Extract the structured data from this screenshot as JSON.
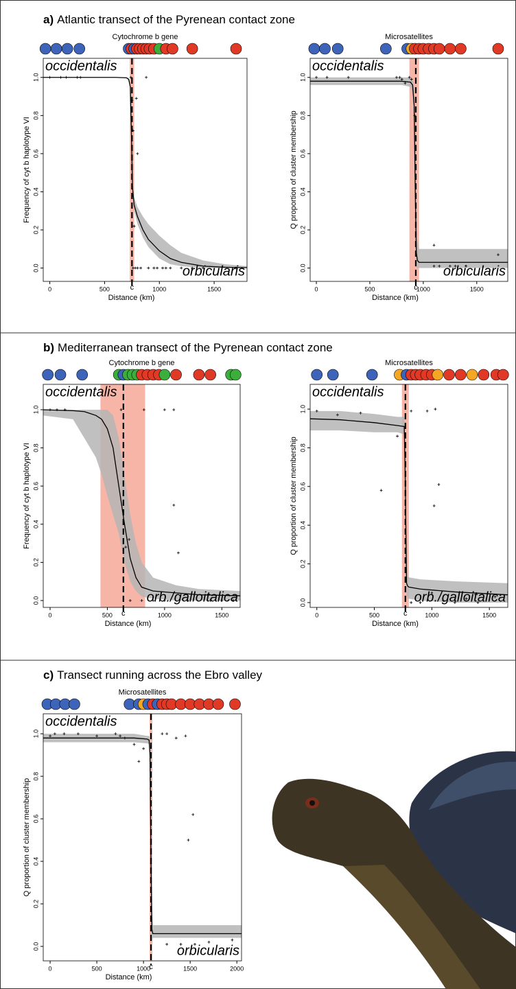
{
  "panels": [
    {
      "label": "a)",
      "title": "Atlantic transect of the Pyrenean contact zone"
    },
    {
      "label": "b)",
      "title": "Mediterranean transect of the Pyrenean contact zone"
    },
    {
      "label": "c)",
      "title": "Transect running across the Ebro valley"
    }
  ],
  "chart_data": [
    {
      "type": "cline",
      "title": "Cytochrome b gene",
      "xlabel": "Distance (km)",
      "ylabel": "Frequency of cyt b haplotype VI",
      "upper_label": "occidentalis",
      "lower_label": "orbicularis",
      "center_label": "c",
      "center": 750,
      "center_ci": [
        730,
        770
      ],
      "xlim": [
        -60,
        1800
      ],
      "ylim": [
        -0.07,
        1.1
      ],
      "xticks": [
        0,
        500,
        1000,
        1500
      ],
      "yticks": [
        {
          "value": 0,
          "label": "0.0"
        },
        0.2,
        0.4,
        0.6,
        0.8,
        {
          "value": 1,
          "label": "1.0"
        }
      ],
      "curve": {
        "x": [
          -60,
          600,
          700,
          720,
          735,
          745,
          755,
          770,
          800,
          850,
          900,
          1000,
          1100,
          1200,
          1400,
          1600,
          1800
        ],
        "y": [
          1,
          1,
          0.998,
          0.99,
          0.95,
          0.7,
          0.42,
          0.33,
          0.27,
          0.2,
          0.15,
          0.09,
          0.05,
          0.03,
          0.01,
          0.004,
          0.002
        ]
      },
      "band": {
        "x": [
          -60,
          600,
          700,
          720,
          735,
          745,
          755,
          770,
          800,
          850,
          900,
          1000,
          1100,
          1200,
          1400,
          1600,
          1800
        ],
        "upper": [
          1,
          1,
          1,
          0.995,
          0.97,
          0.75,
          0.45,
          0.37,
          0.32,
          0.27,
          0.23,
          0.17,
          0.12,
          0.08,
          0.04,
          0.02,
          0.01
        ],
        "lower": [
          1,
          1,
          0.996,
          0.985,
          0.93,
          0.65,
          0.39,
          0.3,
          0.23,
          0.16,
          0.11,
          0.05,
          0.02,
          0.01,
          0,
          0,
          0
        ]
      },
      "points": {
        "x": [
          0,
          100,
          150,
          250,
          280,
          740,
          750,
          760,
          790,
          800,
          880,
          770,
          760,
          780,
          800,
          830,
          900,
          950,
          980,
          1030,
          1060,
          1100,
          1200,
          1300,
          1400,
          1700
        ],
        "y": [
          1,
          1,
          1,
          1,
          1,
          1,
          0.88,
          0.72,
          0.89,
          0.6,
          1,
          0.22,
          0,
          0,
          0,
          0,
          0,
          0,
          0,
          0,
          0,
          0,
          0,
          0,
          0,
          0
        ]
      },
      "sites": {
        "x": [
          -40,
          60,
          160,
          270,
          720,
          745,
          770,
          795,
          820,
          850,
          880,
          910,
          950,
          1000,
          1060,
          1120,
          1300,
          1700
        ],
        "colors": [
          "#3d64b8",
          "#3d64b8",
          "#3d64b8",
          "#3d64b8",
          "#3d64b8",
          "#e03a26",
          "#3d64b8",
          "#e03a26",
          "#e03a26",
          "#e03a26",
          "#e03a26",
          "#e03a26",
          "#e03a26",
          "#3cae3c",
          "#e03a26",
          "#e03a26",
          "#e03a26",
          "#e03a26"
        ]
      }
    },
    {
      "type": "cline",
      "title": "Microsatellites",
      "xlabel": "Distance (km)",
      "ylabel": "Q proportion of cluster membership",
      "upper_label": "occidentalis",
      "lower_label": "orbicularis",
      "center_label": "c",
      "center": 930,
      "center_ci": [
        870,
        960
      ],
      "xlim": [
        -58,
        1790
      ],
      "ylim": [
        -0.07,
        1.1
      ],
      "xticks": [
        0,
        500,
        1000,
        1500
      ],
      "yticks": [
        {
          "value": 0,
          "label": "0.0"
        },
        0.2,
        0.4,
        0.6,
        0.8,
        {
          "value": 1,
          "label": "1.0"
        }
      ],
      "curve": {
        "x": [
          -58,
          600,
          800,
          880,
          900,
          915,
          925,
          935,
          945,
          960,
          1000,
          1200,
          1500,
          1790
        ],
        "y": [
          0.98,
          0.98,
          0.98,
          0.975,
          0.96,
          0.85,
          0.4,
          0.08,
          0.04,
          0.03,
          0.03,
          0.03,
          0.03,
          0.03
        ]
      },
      "band": {
        "x": [
          -58,
          600,
          800,
          880,
          900,
          915,
          925,
          935,
          945,
          960,
          1000,
          1200,
          1500,
          1790
        ],
        "upper": [
          1,
          1,
          1,
          1,
          0.99,
          0.95,
          0.7,
          0.3,
          0.15,
          0.1,
          0.1,
          0.1,
          0.1,
          0.1
        ],
        "lower": [
          0.96,
          0.96,
          0.96,
          0.95,
          0.92,
          0.7,
          0.15,
          0,
          0,
          0,
          0,
          0,
          0,
          0
        ]
      },
      "points": {
        "x": [
          0,
          100,
          300,
          750,
          780,
          800,
          830,
          870,
          890,
          920,
          1100,
          1100,
          1150,
          1250,
          1300,
          1400,
          1700
        ],
        "y": [
          1,
          1,
          1,
          1,
          1,
          0.99,
          0.97,
          1,
          0.99,
          0.8,
          0.12,
          0.01,
          0.01,
          0.01,
          0.01,
          0.01,
          0.07
        ]
      },
      "sites": {
        "x": [
          -20,
          80,
          200,
          650,
          850,
          890,
          920,
          960,
          1000,
          1050,
          1100,
          1150,
          1250,
          1350,
          1700
        ],
        "colors": [
          "#3d64b8",
          "#3d64b8",
          "#3d64b8",
          "#3d64b8",
          "#3d64b8",
          "#f5a623",
          "#e03a26",
          "#e03a26",
          "#e03a26",
          "#e03a26",
          "#e03a26",
          "#e03a26",
          "#e03a26",
          "#e03a26",
          "#e03a26"
        ]
      }
    },
    {
      "type": "cline",
      "title": "Cytochrome b gene",
      "xlabel": "Distance (km)",
      "ylabel": "Frequency of cyt b haplotype VI",
      "upper_label": "occidentalis",
      "lower_label": "orb./galloitalica",
      "center_label": "c",
      "center": 640,
      "center_ci": [
        440,
        830
      ],
      "xlim": [
        -60,
        1660
      ],
      "ylim": [
        -0.036,
        1.133
      ],
      "xticks": [
        0,
        500,
        1000,
        1500
      ],
      "yticks": [
        {
          "value": 0,
          "label": "0.0"
        },
        0.2,
        0.4,
        0.6,
        0.8,
        {
          "value": 1,
          "label": "1.0"
        }
      ],
      "curve": {
        "x": [
          -60,
          200,
          300,
          400,
          450,
          500,
          550,
          600,
          650,
          700,
          750,
          800,
          900,
          1100,
          1300,
          1660
        ],
        "y": [
          1,
          0.995,
          0.99,
          0.97,
          0.95,
          0.9,
          0.8,
          0.6,
          0.4,
          0.22,
          0.12,
          0.07,
          0.05,
          0.04,
          0.03,
          0.025
        ]
      },
      "band": {
        "x": [
          -60,
          200,
          300,
          400,
          450,
          500,
          550,
          600,
          650,
          700,
          750,
          800,
          900,
          1100,
          1300,
          1660
        ],
        "upper": [
          1,
          1,
          1,
          1,
          1,
          1,
          0.97,
          0.85,
          0.65,
          0.45,
          0.3,
          0.2,
          0.12,
          0.08,
          0.06,
          0.05
        ],
        "lower": [
          0.97,
          0.95,
          0.85,
          0.75,
          0.66,
          0.55,
          0.45,
          0.35,
          0.2,
          0.1,
          0.05,
          0.02,
          0.01,
          0,
          0,
          0
        ]
      },
      "points": {
        "x": [
          0,
          60,
          130,
          620,
          690,
          660,
          820,
          1000,
          1080,
          1080,
          1120,
          700,
          800,
          900,
          1000,
          1200,
          1400,
          1500,
          1600
        ],
        "y": [
          1,
          1,
          1,
          1,
          0.32,
          0.28,
          1,
          1,
          1,
          0.5,
          0.25,
          0,
          0,
          0,
          0,
          0,
          0,
          0,
          0
        ]
      },
      "sites": {
        "x": [
          -20,
          90,
          280,
          600,
          640,
          680,
          720,
          760,
          800,
          850,
          900,
          950,
          1000,
          1100,
          1300,
          1400,
          1580,
          1620
        ],
        "colors": [
          "#3d64b8",
          "#3d64b8",
          "#3d64b8",
          "#3cae3c",
          "#3d64b8",
          "#3cae3c",
          "#3cae3c",
          "#3cae3c",
          "#e03a26",
          "#e03a26",
          "#e03a26",
          "#e03a26",
          "#3cae3c",
          "#e03a26",
          "#e03a26",
          "#e03a26",
          "#3cae3c",
          "#3cae3c"
        ]
      }
    },
    {
      "type": "cline",
      "title": "Microsatellites",
      "xlabel": "Distance (km)",
      "ylabel": "Q proportion of cluster membership",
      "upper_label": "occidentalis",
      "lower_label": "orb./galloitalica",
      "center_label": "c",
      "center": 770,
      "center_ci": [
        740,
        800
      ],
      "xlim": [
        -58,
        1660
      ],
      "ylim": [
        -0.025,
        1.128
      ],
      "xticks": [
        0,
        500,
        1000,
        1500
      ],
      "yticks": [
        {
          "value": 0,
          "label": "0.0"
        },
        0.2,
        0.4,
        0.6,
        0.8,
        {
          "value": 1,
          "label": "1.0"
        }
      ],
      "curve": {
        "x": [
          -58,
          200,
          500,
          700,
          760,
          770,
          780,
          790,
          800,
          900,
          1200,
          1660
        ],
        "y": [
          0.95,
          0.945,
          0.93,
          0.915,
          0.91,
          0.6,
          0.1,
          0.085,
          0.08,
          0.07,
          0.055,
          0.04
        ]
      },
      "band": {
        "x": [
          -58,
          200,
          500,
          700,
          760,
          770,
          780,
          790,
          800,
          900,
          1200,
          1660
        ],
        "upper": [
          0.99,
          0.99,
          0.975,
          0.96,
          0.96,
          0.8,
          0.2,
          0.14,
          0.13,
          0.12,
          0.11,
          0.1
        ],
        "lower": [
          0.89,
          0.89,
          0.88,
          0.88,
          0.87,
          0.4,
          0.03,
          0.02,
          0.02,
          0.01,
          0,
          0
        ]
      },
      "points": {
        "x": [
          0,
          180,
          380,
          560,
          700,
          820,
          960,
          1030,
          1020,
          1060,
          820,
          900,
          1000,
          1100,
          1200,
          1300,
          1400,
          1550
        ],
        "y": [
          0.99,
          0.97,
          0.98,
          0.58,
          0.86,
          0.99,
          0.99,
          1,
          0.5,
          0.61,
          0,
          0,
          0.05,
          0.01,
          0,
          0.02,
          0,
          0.03
        ]
      },
      "sites": {
        "x": [
          0,
          140,
          480,
          720,
          780,
          820,
          860,
          900,
          950,
          1000,
          1050,
          1150,
          1250,
          1350,
          1450,
          1560,
          1620
        ],
        "colors": [
          "#3d64b8",
          "#3d64b8",
          "#3d64b8",
          "#f5a623",
          "#3d64b8",
          "#e03a26",
          "#e03a26",
          "#e03a26",
          "#e03a26",
          "#e03a26",
          "#f5a623",
          "#e03a26",
          "#e03a26",
          "#f5a623",
          "#e03a26",
          "#e03a26",
          "#e03a26"
        ]
      }
    },
    {
      "type": "cline",
      "title": "Microsatellites",
      "xlabel": "Distance (km)",
      "ylabel": "Q proportion of cluster membership",
      "upper_label": "occidentalis",
      "lower_label": "orbicularis",
      "center_label": "c",
      "center": 1080,
      "center_ci": [
        1065,
        1095
      ],
      "xlim": [
        -74,
        2050
      ],
      "ylim": [
        -0.068,
        1.094
      ],
      "xticks": [
        0,
        500,
        1000,
        1500,
        2000
      ],
      "yticks": [
        {
          "value": 0,
          "label": "0.0"
        },
        0.2,
        0.4,
        0.6,
        0.8,
        {
          "value": 1,
          "label": "1.0"
        }
      ],
      "curve": {
        "x": [
          -74,
          600,
          900,
          1040,
          1060,
          1070,
          1080,
          1090,
          1100,
          1200,
          1500,
          2050
        ],
        "y": [
          0.98,
          0.98,
          0.98,
          0.975,
          0.97,
          0.9,
          0.4,
          0.08,
          0.06,
          0.06,
          0.06,
          0.06
        ]
      },
      "band": {
        "x": [
          -74,
          600,
          900,
          1040,
          1060,
          1070,
          1080,
          1090,
          1100,
          1200,
          1500,
          2050
        ],
        "upper": [
          1,
          1,
          1,
          0.99,
          0.99,
          0.98,
          0.8,
          0.2,
          0.1,
          0.1,
          0.1,
          0.1
        ],
        "lower": [
          0.96,
          0.96,
          0.96,
          0.955,
          0.95,
          0.7,
          0.05,
          0.01,
          0.04,
          0.04,
          0.04,
          0.04
        ]
      },
      "points": {
        "x": [
          0,
          50,
          150,
          300,
          500,
          700,
          750,
          800,
          900,
          950,
          1000,
          1200,
          1250,
          1350,
          1450,
          1480,
          1530,
          1250,
          1400,
          1550,
          1700,
          1950
        ],
        "y": [
          0.99,
          1,
          1,
          1,
          0.99,
          1,
          0.99,
          0.98,
          0.95,
          0.87,
          0.93,
          1,
          1,
          0.98,
          0.99,
          0.5,
          0.62,
          0.01,
          0.01,
          0.01,
          0.02,
          0.03
        ]
      },
      "sites": {
        "x": [
          -30,
          60,
          160,
          260,
          850,
          950,
          1000,
          1050,
          1100,
          1150,
          1200,
          1250,
          1300,
          1400,
          1500,
          1600,
          1700,
          1800,
          1980
        ],
        "colors": [
          "#3d64b8",
          "#3d64b8",
          "#3d64b8",
          "#3d64b8",
          "#3d64b8",
          "#3d64b8",
          "#f5a623",
          "#3d64b8",
          "#e03a26",
          "#3d64b8",
          "#e03a26",
          "#e03a26",
          "#e03a26",
          "#e03a26",
          "#e03a26",
          "#e03a26",
          "#e03a26",
          "#e03a26",
          "#e03a26"
        ]
      }
    }
  ]
}
